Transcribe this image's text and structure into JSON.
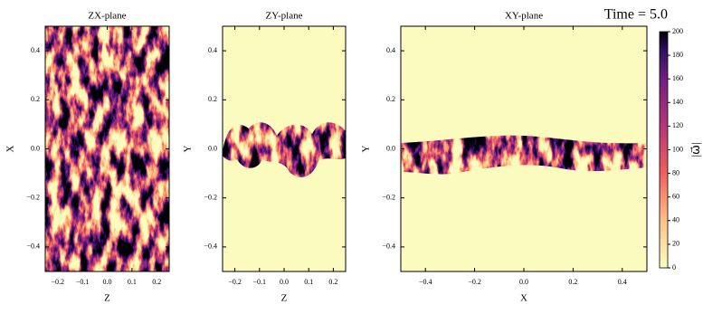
{
  "chart_data": [
    {
      "type": "heatmap",
      "title": "ZX-plane",
      "xlabel": "Z",
      "ylabel": "X",
      "xlim": [
        -0.25,
        0.25
      ],
      "ylim": [
        -0.5,
        0.5
      ],
      "xticks": [
        {
          "value": -0.2,
          "label": "−0.2"
        },
        {
          "value": -0.1,
          "label": "−0.1"
        },
        {
          "value": 0,
          "label": "0.0"
        },
        0.1,
        0.2
      ],
      "yticks": [
        {
          "value": -0.4,
          "label": "−0.4"
        },
        {
          "value": -0.2,
          "label": "−0.2"
        },
        {
          "value": 0,
          "label": "0.0"
        },
        0.2,
        0.4
      ]
    },
    {
      "type": "heatmap",
      "title": "ZY-plane",
      "xlabel": "Z",
      "ylabel": "Y",
      "xlim": [
        -0.25,
        0.25
      ],
      "ylim": [
        -0.5,
        0.5
      ],
      "xticks": [
        {
          "value": -0.2,
          "label": "−0.2"
        },
        {
          "value": -0.1,
          "label": "−0.1"
        },
        {
          "value": 0,
          "label": "0.0"
        },
        0.1,
        0.2
      ],
      "yticks": [
        {
          "value": -0.4,
          "label": "−0.4"
        },
        {
          "value": -0.2,
          "label": "−0.2"
        },
        {
          "value": 0,
          "label": "0.0"
        },
        0.2,
        0.4
      ]
    },
    {
      "type": "heatmap",
      "title": "XY-plane",
      "xlabel": "X",
      "ylabel": "Y",
      "xlim": [
        -0.5,
        0.5
      ],
      "ylim": [
        -0.5,
        0.5
      ],
      "xticks": [
        {
          "value": -0.4,
          "label": "−0.4"
        },
        {
          "value": -0.2,
          "label": "−0.2"
        },
        {
          "value": 0,
          "label": "0.0"
        },
        0.2,
        0.4
      ],
      "yticks": [
        {
          "value": -0.4,
          "label": "−0.4"
        },
        {
          "value": -0.2,
          "label": "−0.2"
        },
        {
          "value": 0,
          "label": "0.0"
        },
        0.2,
        0.4
      ],
      "annotation": "Time =  5.0",
      "colorbar": {
        "label": "|ω⃗|",
        "clim": [
          0,
          200
        ],
        "cticks": [
          0,
          20,
          40,
          60,
          80,
          100,
          120,
          140,
          160,
          180,
          200
        ]
      }
    }
  ]
}
